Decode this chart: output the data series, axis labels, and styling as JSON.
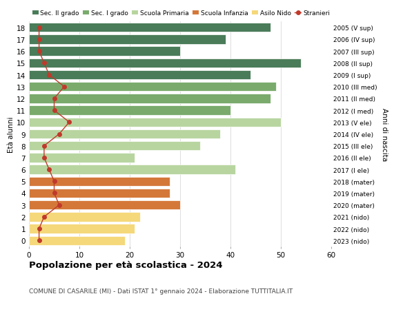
{
  "ages": [
    18,
    17,
    16,
    15,
    14,
    13,
    12,
    11,
    10,
    9,
    8,
    7,
    6,
    5,
    4,
    3,
    2,
    1,
    0
  ],
  "years": [
    "2005 (V sup)",
    "2006 (IV sup)",
    "2007 (III sup)",
    "2008 (II sup)",
    "2009 (I sup)",
    "2010 (III med)",
    "2011 (II med)",
    "2012 (I med)",
    "2013 (V ele)",
    "2014 (IV ele)",
    "2015 (III ele)",
    "2016 (II ele)",
    "2017 (I ele)",
    "2018 (mater)",
    "2019 (mater)",
    "2020 (mater)",
    "2021 (nido)",
    "2022 (nido)",
    "2023 (nido)"
  ],
  "bar_values": [
    48,
    39,
    30,
    54,
    44,
    49,
    48,
    40,
    50,
    38,
    34,
    21,
    41,
    28,
    28,
    30,
    22,
    21,
    19
  ],
  "stranieri_values": [
    2,
    2,
    2,
    3,
    4,
    7,
    5,
    5,
    8,
    6,
    3,
    3,
    4,
    5,
    5,
    6,
    3,
    2,
    2
  ],
  "bar_colors": [
    "#4a7c59",
    "#4a7c59",
    "#4a7c59",
    "#4a7c59",
    "#4a7c59",
    "#7aab6d",
    "#7aab6d",
    "#7aab6d",
    "#b8d5a0",
    "#b8d5a0",
    "#b8d5a0",
    "#b8d5a0",
    "#b8d5a0",
    "#d4783a",
    "#d4783a",
    "#d4783a",
    "#f5d87a",
    "#f5d87a",
    "#f5d87a"
  ],
  "legend_labels": [
    "Sec. II grado",
    "Sec. I grado",
    "Scuola Primaria",
    "Scuola Infanzia",
    "Asilo Nido",
    "Stranieri"
  ],
  "legend_colors": [
    "#4a7c59",
    "#7aab6d",
    "#b8d5a0",
    "#d4783a",
    "#f5d87a",
    "#c0392b"
  ],
  "stranieri_color": "#c0392b",
  "title": "Popolazione per età scolastica - 2024",
  "subtitle": "COMUNE DI CASARILE (MI) - Dati ISTAT 1° gennaio 2024 - Elaborazione TUTTITALIA.IT",
  "ylabel_left": "Età alunni",
  "ylabel_right": "Anni di nascita",
  "xlim": [
    0,
    60
  ],
  "background_color": "#ffffff",
  "grid_color": "#dddddd"
}
